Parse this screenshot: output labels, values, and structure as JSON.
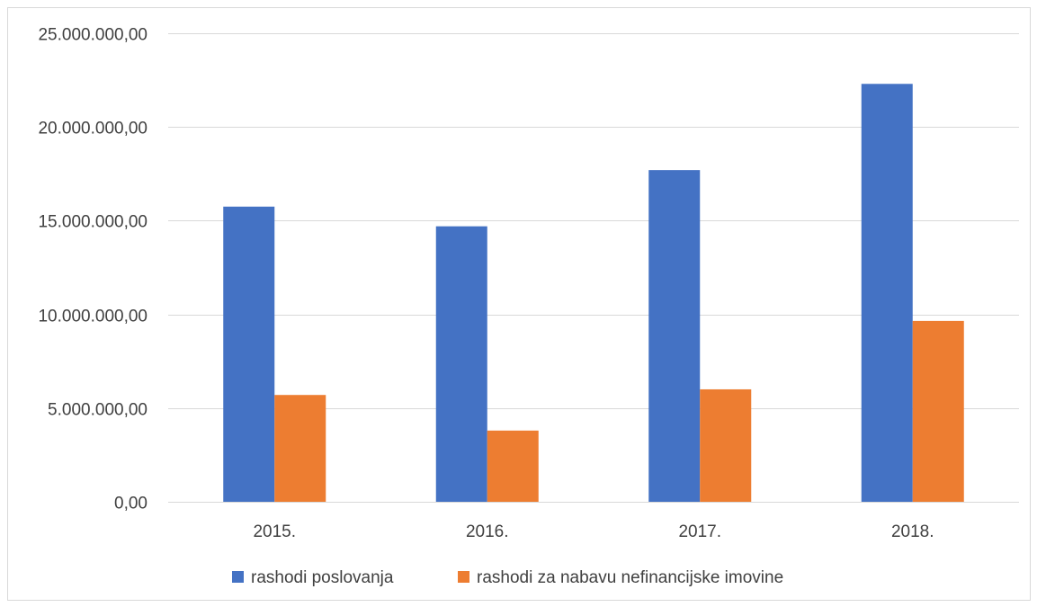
{
  "chart_data": {
    "type": "bar",
    "title": "",
    "xlabel": "",
    "ylabel": "",
    "categories": [
      "2015.",
      "2016.",
      "2017.",
      "2018."
    ],
    "series": [
      {
        "name": "rashodi poslovanja",
        "color": "#4472C4",
        "values": [
          15750000,
          14700000,
          17700000,
          22300000
        ]
      },
      {
        "name": "rashodi za nabavu nefinancijske imovine",
        "color": "#ED7D31",
        "values": [
          5700000,
          3800000,
          6000000,
          9650000
        ]
      }
    ],
    "ylim": [
      0,
      25000000
    ],
    "y_ticks": [
      0,
      5000000,
      10000000,
      15000000,
      20000000,
      25000000
    ],
    "y_tick_labels": [
      "0,00",
      "5.000.000,00",
      "10.000.000,00",
      "15.000.000,00",
      "20.000.000,00",
      "25.000.000,00"
    ],
    "grid": true,
    "legend_position": "bottom"
  }
}
